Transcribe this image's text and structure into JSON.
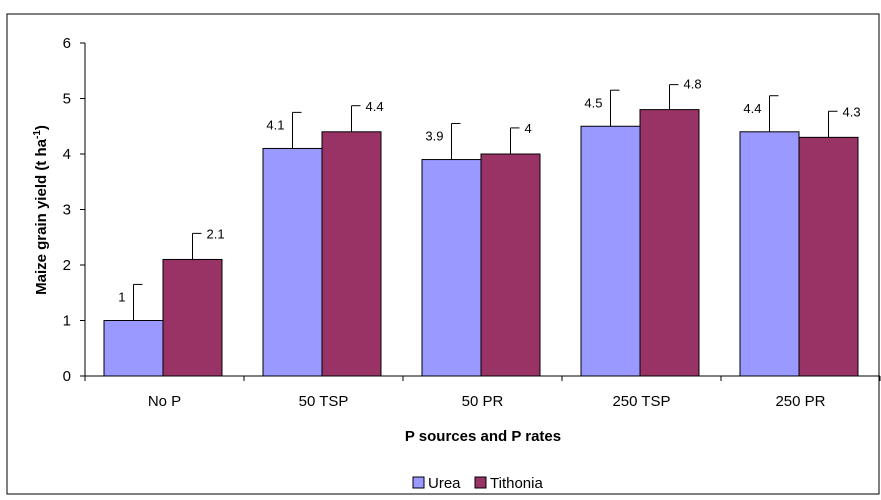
{
  "chart_data": {
    "type": "bar",
    "title": "",
    "xlabel": "P sources and P rates",
    "ylabel": "Maize grain yield (t ha",
    "ylabel_superscript": "-1",
    "ylabel_suffix": ")",
    "categories": [
      "No P",
      "50 TSP",
      "50 PR",
      "250 TSP",
      "250 PR"
    ],
    "series": [
      {
        "name": "Urea",
        "color": "#9999ff",
        "values": [
          1,
          4.1,
          3.9,
          4.5,
          4.4
        ],
        "labels": [
          "1",
          "4.1",
          "3.9",
          "4.5",
          "4.4"
        ],
        "error_upper": [
          1.65,
          4.75,
          4.55,
          5.15,
          5.05
        ]
      },
      {
        "name": "Tithonia",
        "color": "#993366",
        "values": [
          2.1,
          4.4,
          4,
          4.8,
          4.3
        ],
        "labels": [
          "2.1",
          "4.4",
          "4",
          "4.8",
          "4.3"
        ],
        "error_upper": [
          2.57,
          4.87,
          4.47,
          5.25,
          4.77
        ]
      }
    ],
    "ylim": [
      0,
      6
    ],
    "yticks": [
      "0",
      "1",
      "2",
      "3",
      "4",
      "5",
      "6"
    ],
    "grid": false,
    "legend_position": "bottom"
  }
}
